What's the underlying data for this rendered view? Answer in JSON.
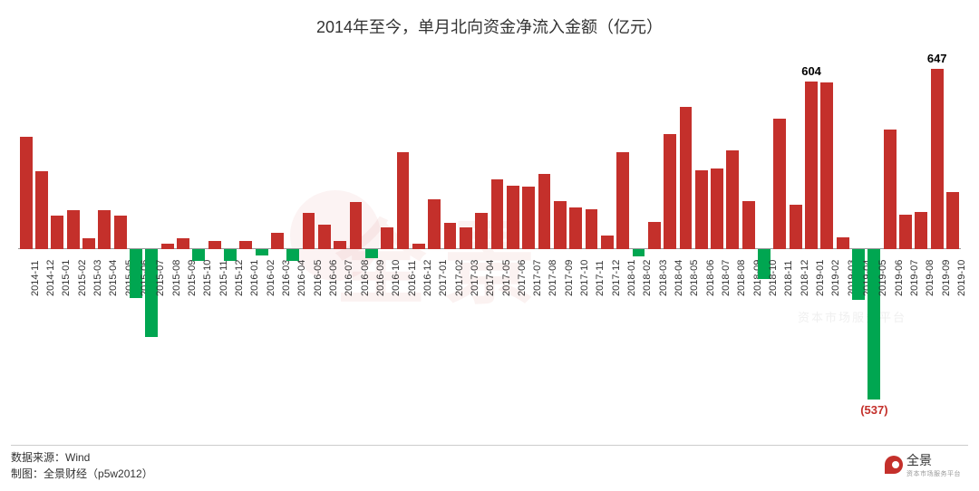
{
  "title": "2014年至今，单月北向资金净流入金额（亿元）",
  "footer": {
    "source_label": "数据来源：",
    "source_value": "Wind",
    "maker_label": "制图：",
    "maker_value": "全景财经（p5w2012）"
  },
  "brand": {
    "text": "全景",
    "sub": "资本市场服务平台"
  },
  "watermark": {
    "text": "全景",
    "sub": "资本市场服务平台"
  },
  "chart": {
    "type": "bar",
    "ymin": -600,
    "ymax": 700,
    "baseline_value": 0,
    "positive_color": "#c4302b",
    "negative_color": "#00a651",
    "grid_color": "#999999",
    "label_fontsize": 11,
    "title_fontsize": 18,
    "data_label_pos_color": "#000000",
    "data_label_neg_color": "#c4302b",
    "categories": [
      "2014-11",
      "2014-12",
      "2015-01",
      "2015-02",
      "2015-03",
      "2015-04",
      "2015-05",
      "2015-06",
      "2015-07",
      "2015-08",
      "2015-09",
      "2015-10",
      "2015-11",
      "2015-12",
      "2016-01",
      "2016-02",
      "2016-03",
      "2016-04",
      "2016-05",
      "2016-06",
      "2016-07",
      "2016-08",
      "2016-09",
      "2016-10",
      "2016-11",
      "2016-12",
      "2017-01",
      "2017-02",
      "2017-03",
      "2017-04",
      "2017-05",
      "2017-06",
      "2017-07",
      "2017-08",
      "2017-09",
      "2017-10",
      "2017-11",
      "2017-12",
      "2018-01",
      "2018-02",
      "2018-03",
      "2018-04",
      "2018-05",
      "2018-06",
      "2018-07",
      "2018-08",
      "2018-09",
      "2018-10",
      "2018-11",
      "2018-12",
      "2019-01",
      "2019-02",
      "2019-03",
      "2019-04",
      "2019-05",
      "2019-06",
      "2019-07",
      "2019-08",
      "2019-09",
      "2019-10"
    ],
    "values": [
      405,
      280,
      120,
      140,
      40,
      140,
      120,
      -175,
      -315,
      20,
      40,
      -40,
      30,
      -40,
      30,
      -20,
      60,
      -40,
      130,
      90,
      30,
      170,
      -30,
      80,
      350,
      20,
      180,
      95,
      80,
      130,
      250,
      230,
      225,
      270,
      175,
      150,
      145,
      50,
      350,
      -25,
      100,
      415,
      510,
      285,
      290,
      355,
      175,
      -105,
      470,
      162,
      604,
      600,
      45,
      -180,
      -537,
      430,
      125,
      135,
      647,
      205
    ],
    "data_labels": [
      {
        "index": 50,
        "text": "604",
        "pos": "above"
      },
      {
        "index": 54,
        "text": "(537)",
        "pos": "below"
      },
      {
        "index": 58,
        "text": "647",
        "pos": "above"
      }
    ]
  }
}
